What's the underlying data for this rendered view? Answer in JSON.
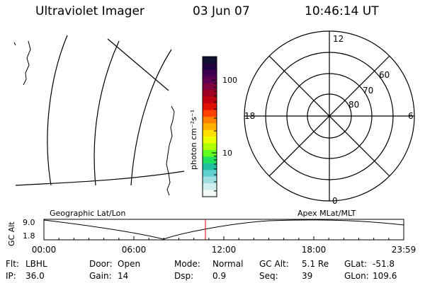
{
  "header": {
    "instrument": "Ultraviolet Imager",
    "date": "03 Jun 07",
    "time": "10:46:14 UT"
  },
  "colorbar": {
    "unit_label": "photon cm⁻²s⁻¹",
    "ticks": [
      {
        "label": "100",
        "value": 100
      },
      {
        "label": "10",
        "value": 10
      }
    ],
    "colors": [
      "#101030",
      "#200040",
      "#400050",
      "#600050",
      "#800040",
      "#a00020",
      "#c00010",
      "#e01000",
      "#ff4000",
      "#ff8000",
      "#ffb000",
      "#ffe000",
      "#e8ff00",
      "#b0ff00",
      "#60ff20",
      "#20e060",
      "#20c0a0",
      "#60d0d0",
      "#a0e0e0",
      "#d0f0f0",
      "#f0f8f8"
    ]
  },
  "polar_plot": {
    "lat_labels": [
      "80",
      "70",
      "60"
    ],
    "mlt_labels": {
      "top": "12",
      "bottom": "0",
      "left": "18",
      "right": "6"
    }
  },
  "timeline": {
    "y_label": "GC Alt",
    "y_max": "9.0",
    "y_min": "1.8",
    "left_title": "Geographic Lat/Lon",
    "right_title": "Apex MLat/MLT",
    "x_ticks": [
      "00:00",
      "06:00",
      "12:00",
      "18:00",
      "23:59"
    ],
    "marker_time_hours": 10.77,
    "marker_color": "#e00000"
  },
  "info_rows": [
    [
      {
        "k": "Flt:",
        "v": "LBHL"
      },
      {
        "k": "Door:",
        "v": "Open"
      },
      {
        "k": "Mode:",
        "v": "Normal"
      },
      {
        "k": "GC Alt:",
        "v": "5.1 Re"
      },
      {
        "k": "GLat:",
        "v": "-51.8"
      }
    ],
    [
      {
        "k": "IP:",
        "v": "36.0"
      },
      {
        "k": "Gain:",
        "v": "14"
      },
      {
        "k": "Dsp:",
        "v": "0.9"
      },
      {
        "k": "Seq:",
        "v": "39"
      },
      {
        "k": "GLon:",
        "v": "109.6"
      }
    ]
  ]
}
